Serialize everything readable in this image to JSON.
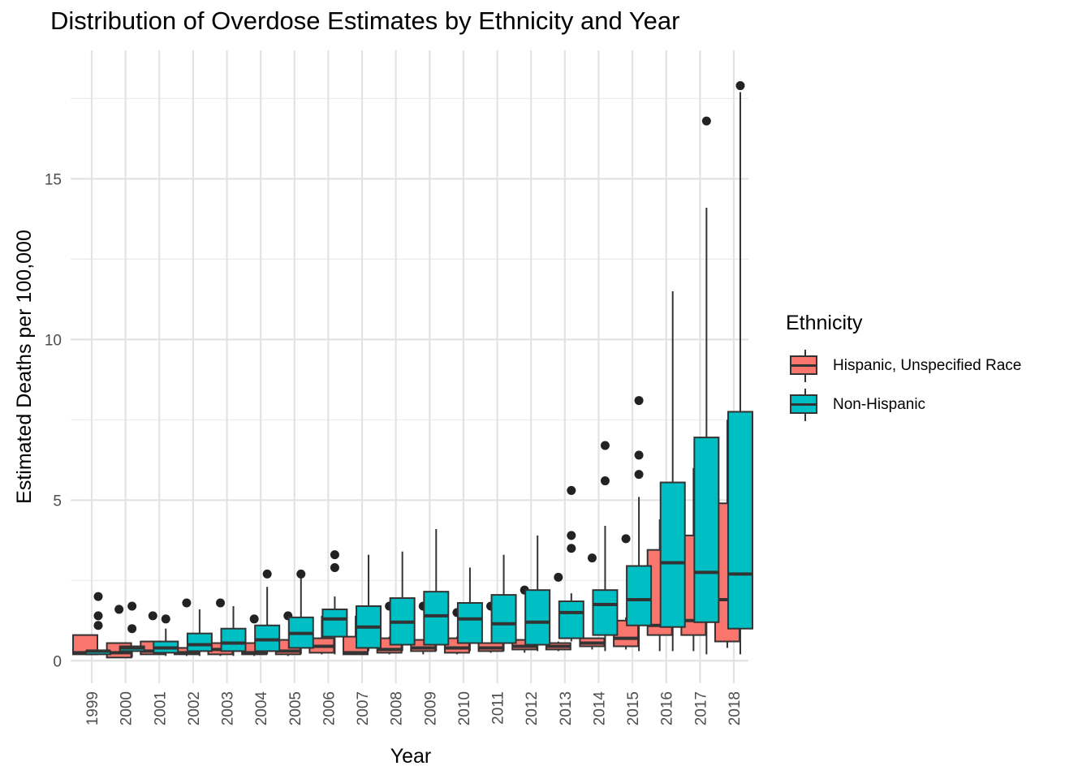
{
  "chart_data": {
    "type": "boxplot",
    "title": "Distribution of Overdose Estimates by Ethnicity and Year",
    "xlabel": "Year",
    "ylabel": "Estimated Deaths per 100,000",
    "ylim": [
      -0.7,
      19.0
    ],
    "yticks": [
      0,
      5,
      10,
      15
    ],
    "grid": true,
    "legend_position": "right",
    "legend_title": "Ethnicity",
    "categories": [
      "1999",
      "2000",
      "2001",
      "2002",
      "2003",
      "2004",
      "2005",
      "2006",
      "2007",
      "2008",
      "2009",
      "2010",
      "2011",
      "2012",
      "2013",
      "2014",
      "2015",
      "2016",
      "2017",
      "2018"
    ],
    "series": [
      {
        "name": "Hispanic, Unspecified Race",
        "color": "#F8766D",
        "boxes": [
          {
            "lo": 0.2,
            "q1": 0.2,
            "med": 0.25,
            "q3": 0.8,
            "hi": 0.8,
            "out": []
          },
          {
            "lo": 0.1,
            "q1": 0.1,
            "med": 0.25,
            "q3": 0.55,
            "hi": 0.55,
            "out": [
              1.6
            ]
          },
          {
            "lo": 0.2,
            "q1": 0.2,
            "med": 0.3,
            "q3": 0.6,
            "hi": 0.6,
            "out": [
              1.4
            ]
          },
          {
            "lo": 0.15,
            "q1": 0.2,
            "med": 0.25,
            "q3": 0.4,
            "hi": 0.4,
            "out": [
              1.8
            ]
          },
          {
            "lo": 0.15,
            "q1": 0.2,
            "med": 0.35,
            "q3": 0.55,
            "hi": 0.55,
            "out": [
              1.8
            ]
          },
          {
            "lo": 0.15,
            "q1": 0.2,
            "med": 0.25,
            "q3": 0.55,
            "hi": 0.55,
            "out": [
              1.3
            ]
          },
          {
            "lo": 0.15,
            "q1": 0.2,
            "med": 0.3,
            "q3": 0.65,
            "hi": 0.65,
            "out": [
              1.4
            ]
          },
          {
            "lo": 0.2,
            "q1": 0.25,
            "med": 0.45,
            "q3": 0.7,
            "hi": 1.4,
            "out": []
          },
          {
            "lo": 0.2,
            "q1": 0.2,
            "med": 0.25,
            "q3": 0.75,
            "hi": 1.4,
            "out": []
          },
          {
            "lo": 0.2,
            "q1": 0.25,
            "med": 0.35,
            "q3": 0.7,
            "hi": 0.75,
            "out": [
              1.7
            ]
          },
          {
            "lo": 0.2,
            "q1": 0.3,
            "med": 0.4,
            "q3": 0.65,
            "hi": 0.65,
            "out": [
              1.7
            ]
          },
          {
            "lo": 0.2,
            "q1": 0.25,
            "med": 0.4,
            "q3": 0.7,
            "hi": 0.75,
            "out": [
              1.5
            ]
          },
          {
            "lo": 0.25,
            "q1": 0.3,
            "med": 0.4,
            "q3": 0.55,
            "hi": 0.55,
            "out": [
              1.7
            ]
          },
          {
            "lo": 0.25,
            "q1": 0.35,
            "med": 0.45,
            "q3": 0.65,
            "hi": 0.65,
            "out": [
              2.2
            ]
          },
          {
            "lo": 0.3,
            "q1": 0.35,
            "med": 0.45,
            "q3": 0.55,
            "hi": 0.6,
            "out": [
              2.6
            ]
          },
          {
            "lo": 0.35,
            "q1": 0.45,
            "med": 0.55,
            "q3": 0.7,
            "hi": 0.7,
            "out": [
              3.2
            ]
          },
          {
            "lo": 0.35,
            "q1": 0.45,
            "med": 0.7,
            "q3": 1.25,
            "hi": 1.35,
            "out": [
              3.8
            ]
          },
          {
            "lo": 0.3,
            "q1": 0.8,
            "med": 1.1,
            "q3": 3.45,
            "hi": 4.4,
            "out": []
          },
          {
            "lo": 0.3,
            "q1": 0.8,
            "med": 1.25,
            "q3": 3.9,
            "hi": 6.0,
            "out": []
          },
          {
            "lo": 0.4,
            "q1": 0.6,
            "med": 1.9,
            "q3": 4.9,
            "hi": 7.5,
            "out": []
          }
        ]
      },
      {
        "name": "Non-Hispanic",
        "color": "#00BFC4",
        "boxes": [
          {
            "lo": 0.2,
            "q1": 0.2,
            "med": 0.3,
            "q3": 0.3,
            "hi": 0.3,
            "out": [
              1.1,
              1.4,
              2.0
            ]
          },
          {
            "lo": 0.1,
            "q1": 0.3,
            "med": 0.4,
            "q3": 0.45,
            "hi": 0.45,
            "out": [
              1.0,
              1.7
            ]
          },
          {
            "lo": 0.15,
            "q1": 0.25,
            "med": 0.4,
            "q3": 0.6,
            "hi": 1.0,
            "out": [
              1.3
            ]
          },
          {
            "lo": 0.15,
            "q1": 0.3,
            "med": 0.5,
            "q3": 0.85,
            "hi": 1.6,
            "out": []
          },
          {
            "lo": 0.15,
            "q1": 0.3,
            "med": 0.55,
            "q3": 1.0,
            "hi": 1.7,
            "out": []
          },
          {
            "lo": 0.2,
            "q1": 0.3,
            "med": 0.65,
            "q3": 1.1,
            "hi": 2.3,
            "out": [
              2.7
            ]
          },
          {
            "lo": 0.2,
            "q1": 0.4,
            "med": 0.85,
            "q3": 1.35,
            "hi": 2.6,
            "out": [
              2.7
            ]
          },
          {
            "lo": 0.2,
            "q1": 0.75,
            "med": 1.3,
            "q3": 1.6,
            "hi": 2.0,
            "out": [
              2.9,
              3.3
            ]
          },
          {
            "lo": 0.3,
            "q1": 0.4,
            "med": 1.05,
            "q3": 1.7,
            "hi": 3.3,
            "out": []
          },
          {
            "lo": 0.3,
            "q1": 0.5,
            "med": 1.2,
            "q3": 1.95,
            "hi": 3.4,
            "out": []
          },
          {
            "lo": 0.3,
            "q1": 0.5,
            "med": 1.4,
            "q3": 2.15,
            "hi": 4.1,
            "out": []
          },
          {
            "lo": 0.3,
            "q1": 0.55,
            "med": 1.3,
            "q3": 1.8,
            "hi": 2.9,
            "out": []
          },
          {
            "lo": 0.3,
            "q1": 0.55,
            "med": 1.15,
            "q3": 2.05,
            "hi": 3.3,
            "out": []
          },
          {
            "lo": 0.3,
            "q1": 0.5,
            "med": 1.2,
            "q3": 2.2,
            "hi": 3.9,
            "out": []
          },
          {
            "lo": 0.6,
            "q1": 0.7,
            "med": 1.5,
            "q3": 1.85,
            "hi": 2.1,
            "out": [
              3.5,
              3.9,
              5.3
            ]
          },
          {
            "lo": 0.3,
            "q1": 0.8,
            "med": 1.75,
            "q3": 2.2,
            "hi": 4.2,
            "out": [
              5.6,
              6.7
            ]
          },
          {
            "lo": 0.3,
            "q1": 1.1,
            "med": 1.9,
            "q3": 2.95,
            "hi": 5.1,
            "out": [
              5.8,
              6.4,
              8.1
            ]
          },
          {
            "lo": 0.3,
            "q1": 1.05,
            "med": 3.05,
            "q3": 5.55,
            "hi": 11.5,
            "out": []
          },
          {
            "lo": 0.2,
            "q1": 1.2,
            "med": 2.75,
            "q3": 6.95,
            "hi": 14.1,
            "out": [
              16.8
            ]
          },
          {
            "lo": 0.2,
            "q1": 1.0,
            "med": 2.7,
            "q3": 7.75,
            "hi": 17.7,
            "out": [
              17.9
            ]
          }
        ]
      }
    ]
  }
}
